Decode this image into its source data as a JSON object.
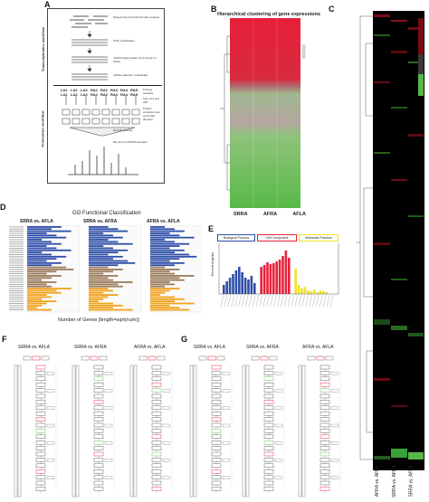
{
  "panels": {
    "a": {
      "label": "A"
    },
    "b": {
      "label": "B",
      "title": "Hierarchical clustering of gene expressions",
      "columns": [
        "SRRA",
        "AFRA",
        "AFLA"
      ]
    },
    "c": {
      "label": "C",
      "columns": [
        "AFRA vs. AFLA",
        "SRRA vs. AFRA",
        "SRRA vs. AFLA"
      ]
    },
    "d": {
      "label": "D",
      "title": "GO Functional Classification",
      "subtitles": [
        "SRRA vs. AFLA",
        "SRRA vs. AFRA",
        "AFRA vs. AFLA"
      ],
      "xlabel": "Number of Genes [length=sqrt(num)]"
    },
    "e": {
      "label": "E",
      "categories": [
        "Biological Process",
        "Cell Component",
        "Molecular Function"
      ],
      "ylabel": "Percent of genes"
    },
    "f": {
      "label": "F",
      "subtitles": [
        "SRRA vs. AFLA",
        "SRRA vs. AFRA",
        "AFRA vs. AFLA"
      ]
    },
    "g": {
      "label": "G",
      "subtitles": [
        "SRRA vs. AFLA",
        "SRRA vs. AFRA",
        "AFRA vs. AFLA"
      ]
    }
  },
  "workflow": {
    "transcriptomics_label": "Transcriptomics workflow",
    "proteomics_label": "Proteomics workflow",
    "steps": [
      "Sequencing and bioinformatic analysis",
      "PCR amplification",
      "mRNA fragmentation and convert to cDNA",
      "mRNA collection, individually",
      "8 tissue samples",
      "from LA1 and 238",
      "Protein extraction and enzymatic direction",
      "Peptide labeling",
      "Mix and LC-MS/MS analysis"
    ],
    "samples_top": [
      "LA1",
      "LA2",
      "LA3",
      "RA1",
      "RA2",
      "RA3",
      "RA4",
      "RA5"
    ],
    "samples_bottom": [
      "LA1",
      "LA2",
      "LA3",
      "RA1",
      "RA2",
      "RA3",
      "RA4",
      "RA5"
    ]
  },
  "colors": {
    "red": "#e8203a",
    "green": "#57b947",
    "blue": "#2e4ea8",
    "brown": "#9b7b5c",
    "orange": "#f0a21c",
    "yellow": "#f2e12a",
    "dark_red": "#7a0a16"
  }
}
